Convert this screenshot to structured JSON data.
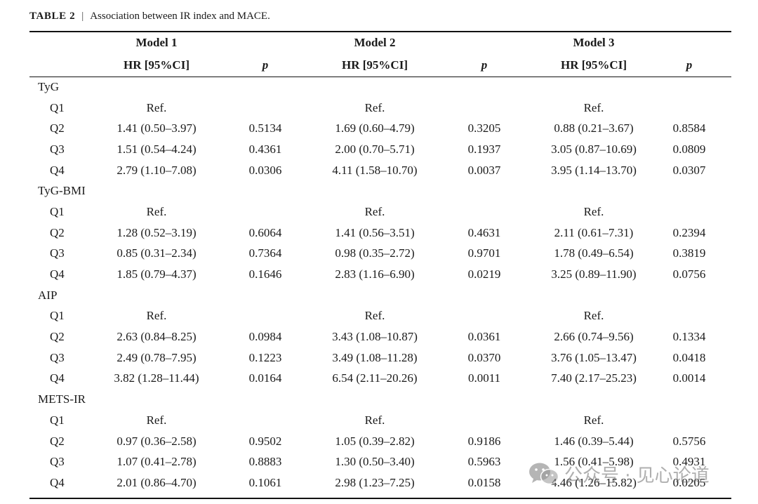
{
  "caption": {
    "label": "TABLE 2",
    "separator": "|",
    "title": "Association between IR index and MACE."
  },
  "header": {
    "models": [
      "Model 1",
      "Model 2",
      "Model 3"
    ],
    "hr_label": "HR [95%CI]",
    "p_label": "p"
  },
  "groups": [
    {
      "name": "TyG",
      "rows": [
        {
          "q": "Q1",
          "m1_hr": "Ref.",
          "m1_p": "",
          "m2_hr": "Ref.",
          "m2_p": "",
          "m3_hr": "Ref.",
          "m3_p": ""
        },
        {
          "q": "Q2",
          "m1_hr": "1.41 (0.50–3.97)",
          "m1_p": "0.5134",
          "m2_hr": "1.69 (0.60–4.79)",
          "m2_p": "0.3205",
          "m3_hr": "0.88 (0.21–3.67)",
          "m3_p": "0.8584"
        },
        {
          "q": "Q3",
          "m1_hr": "1.51 (0.54–4.24)",
          "m1_p": "0.4361",
          "m2_hr": "2.00 (0.70–5.71)",
          "m2_p": "0.1937",
          "m3_hr": "3.05 (0.87–10.69)",
          "m3_p": "0.0809"
        },
        {
          "q": "Q4",
          "m1_hr": "2.79 (1.10–7.08)",
          "m1_p": "0.0306",
          "m2_hr": "4.11 (1.58–10.70)",
          "m2_p": "0.0037",
          "m3_hr": "3.95 (1.14–13.70)",
          "m3_p": "0.0307"
        }
      ]
    },
    {
      "name": "TyG-BMI",
      "rows": [
        {
          "q": "Q1",
          "m1_hr": "Ref.",
          "m1_p": "",
          "m2_hr": "Ref.",
          "m2_p": "",
          "m3_hr": "Ref.",
          "m3_p": ""
        },
        {
          "q": "Q2",
          "m1_hr": "1.28 (0.52–3.19)",
          "m1_p": "0.6064",
          "m2_hr": "1.41 (0.56–3.51)",
          "m2_p": "0.4631",
          "m3_hr": "2.11 (0.61–7.31)",
          "m3_p": "0.2394"
        },
        {
          "q": "Q3",
          "m1_hr": "0.85 (0.31–2.34)",
          "m1_p": "0.7364",
          "m2_hr": "0.98 (0.35–2.72)",
          "m2_p": "0.9701",
          "m3_hr": "1.78 (0.49–6.54)",
          "m3_p": "0.3819"
        },
        {
          "q": "Q4",
          "m1_hr": "1.85 (0.79–4.37)",
          "m1_p": "0.1646",
          "m2_hr": "2.83 (1.16–6.90)",
          "m2_p": "0.0219",
          "m3_hr": "3.25 (0.89–11.90)",
          "m3_p": "0.0756"
        }
      ]
    },
    {
      "name": "AIP",
      "rows": [
        {
          "q": "Q1",
          "m1_hr": "Ref.",
          "m1_p": "",
          "m2_hr": "Ref.",
          "m2_p": "",
          "m3_hr": "Ref.",
          "m3_p": ""
        },
        {
          "q": "Q2",
          "m1_hr": "2.63 (0.84–8.25)",
          "m1_p": "0.0984",
          "m2_hr": "3.43 (1.08–10.87)",
          "m2_p": "0.0361",
          "m3_hr": "2.66 (0.74–9.56)",
          "m3_p": "0.1334"
        },
        {
          "q": "Q3",
          "m1_hr": "2.49 (0.78–7.95)",
          "m1_p": "0.1223",
          "m2_hr": "3.49 (1.08–11.28)",
          "m2_p": "0.0370",
          "m3_hr": "3.76 (1.05–13.47)",
          "m3_p": "0.0418"
        },
        {
          "q": "Q4",
          "m1_hr": "3.82 (1.28–11.44)",
          "m1_p": "0.0164",
          "m2_hr": "6.54 (2.11–20.26)",
          "m2_p": "0.0011",
          "m3_hr": "7.40 (2.17–25.23)",
          "m3_p": "0.0014"
        }
      ]
    },
    {
      "name": "METS-IR",
      "rows": [
        {
          "q": "Q1",
          "m1_hr": "Ref.",
          "m1_p": "",
          "m2_hr": "Ref.",
          "m2_p": "",
          "m3_hr": "Ref.",
          "m3_p": ""
        },
        {
          "q": "Q2",
          "m1_hr": "0.97 (0.36–2.58)",
          "m1_p": "0.9502",
          "m2_hr": "1.05 (0.39–2.82)",
          "m2_p": "0.9186",
          "m3_hr": "1.46 (0.39–5.44)",
          "m3_p": "0.5756"
        },
        {
          "q": "Q3",
          "m1_hr": "1.07 (0.41–2.78)",
          "m1_p": "0.8883",
          "m2_hr": "1.30 (0.50–3.40)",
          "m2_p": "0.5963",
          "m3_hr": "1.56 (0.41–5.98)",
          "m3_p": "0.4931"
        },
        {
          "q": "Q4",
          "m1_hr": "2.01 (0.86–4.70)",
          "m1_p": "0.1061",
          "m2_hr": "2.98 (1.23–7.25)",
          "m2_p": "0.0158",
          "m3_hr": "4.46 (1.26–15.82)",
          "m3_p": "0.0205"
        }
      ]
    }
  ],
  "watermark": {
    "icon": "wechat-icon",
    "text": "公众号 · 见心论道"
  }
}
